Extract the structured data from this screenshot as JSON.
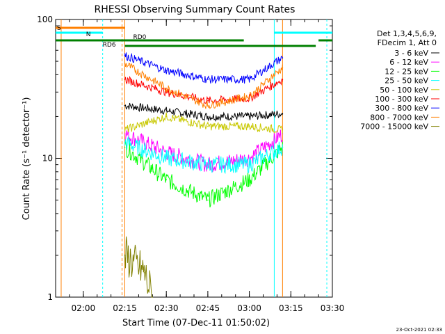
{
  "chart_data": {
    "type": "line",
    "title": "RHESSI Observing Summary Count Rates",
    "xlabel": "Start Time (07-Dec-11 01:50:02)",
    "ylabel": "Count Rate (s⁻¹ detector⁻¹)",
    "y_scale": "log",
    "ylim": [
      1,
      100
    ],
    "xlim": [
      "01:50",
      "03:30"
    ],
    "y_ticks": [
      "1",
      "10",
      "100"
    ],
    "x_ticks": [
      "02:00",
      "02:15",
      "02:30",
      "02:45",
      "03:00",
      "03:15",
      "03:30"
    ],
    "header": [
      "Det 1,3,4,5,6,9,",
      "FDecim 1, Att 0"
    ],
    "timestamp": "23-Oct-2021 02:33",
    "flag_labels": [
      "S",
      "N",
      "RD0",
      "RD6"
    ],
    "data_coverage": [
      "02:15",
      "03:12"
    ],
    "series": [
      {
        "name": "3 - 6 keV",
        "color": "#000000",
        "points": [
          [
            "02:15",
            24
          ],
          [
            "02:30",
            22
          ],
          [
            "02:45",
            20
          ],
          [
            "03:00",
            20
          ],
          [
            "03:12",
            21
          ]
        ]
      },
      {
        "name": "6 - 12 keV",
        "color": "#ff00ff",
        "points": [
          [
            "02:15",
            15
          ],
          [
            "02:30",
            11
          ],
          [
            "02:45",
            9
          ],
          [
            "03:00",
            10
          ],
          [
            "03:12",
            15
          ]
        ]
      },
      {
        "name": "12 - 25 keV",
        "color": "#00ff00",
        "points": [
          [
            "02:15",
            12
          ],
          [
            "02:30",
            7
          ],
          [
            "02:45",
            5
          ],
          [
            "03:00",
            7
          ],
          [
            "03:12",
            12
          ]
        ]
      },
      {
        "name": "25 - 50 keV",
        "color": "#00ffff",
        "points": [
          [
            "02:15",
            13
          ],
          [
            "02:30",
            10
          ],
          [
            "02:45",
            9
          ],
          [
            "03:00",
            9
          ],
          [
            "03:12",
            12
          ]
        ]
      },
      {
        "name": "50 - 100 keV",
        "color": "#c8c800",
        "points": [
          [
            "02:15",
            16
          ],
          [
            "02:30",
            20
          ],
          [
            "02:45",
            17
          ],
          [
            "03:00",
            17
          ],
          [
            "03:12",
            16
          ]
        ]
      },
      {
        "name": "100 - 300 keV",
        "color": "#ff0000",
        "points": [
          [
            "02:15",
            37
          ],
          [
            "02:30",
            30
          ],
          [
            "02:45",
            26
          ],
          [
            "03:00",
            27
          ],
          [
            "03:12",
            37
          ]
        ]
      },
      {
        "name": "300 - 800 keV",
        "color": "#0000ff",
        "points": [
          [
            "02:15",
            55
          ],
          [
            "02:30",
            43
          ],
          [
            "02:45",
            37
          ],
          [
            "03:00",
            37
          ],
          [
            "03:12",
            53
          ]
        ]
      },
      {
        "name": "800 - 7000 keV",
        "color": "#ff8000",
        "points": [
          [
            "02:15",
            48
          ],
          [
            "02:30",
            32
          ],
          [
            "02:45",
            24
          ],
          [
            "03:00",
            28
          ],
          [
            "03:12",
            45
          ]
        ]
      },
      {
        "name": "7000 - 15000 keV",
        "color": "#808000",
        "points": [
          [
            "02:15",
            2
          ],
          [
            "02:22",
            1.5
          ],
          [
            "02:25",
            1
          ]
        ]
      }
    ]
  }
}
